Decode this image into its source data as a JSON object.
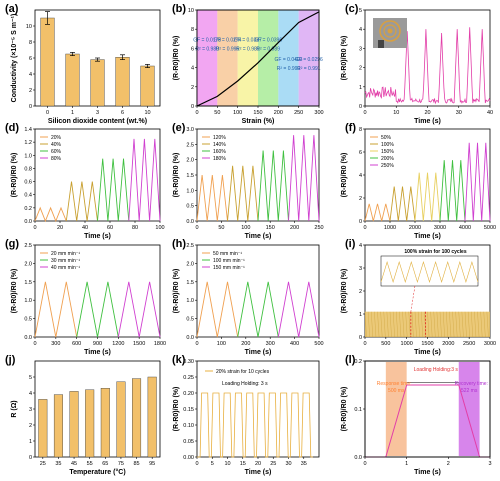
{
  "chart_data": [
    {
      "id": "a",
      "type": "bar",
      "panel_label": "(a)",
      "xlabel": "Silicon dioxide content (wt.%)",
      "ylabel": "Conductivity (×10⁻⁵ S m⁻¹)",
      "categories": [
        "0",
        "1",
        "3",
        "6",
        "10"
      ],
      "values": [
        11.0,
        6.5,
        5.8,
        6.1,
        5.0
      ],
      "errors": [
        0.8,
        0.2,
        0.2,
        0.3,
        0.2
      ],
      "ylim": [
        0,
        12
      ],
      "yticks": [
        "0",
        "2",
        "4",
        "6",
        "8",
        "10"
      ],
      "bar_color": "#f2c06a"
    },
    {
      "id": "b",
      "type": "line",
      "panel_label": "(b)",
      "xlabel": "Strain (%)",
      "ylabel": "(R-R0)/R0 (%)",
      "xlim": [
        0,
        300
      ],
      "ylim": [
        0,
        10
      ],
      "xticks": [
        "0",
        "50",
        "100",
        "150",
        "200",
        "250",
        "300"
      ],
      "yticks": [
        "0",
        "2",
        "4",
        "6",
        "8",
        "10"
      ],
      "x": [
        0,
        50,
        100,
        150,
        200,
        250,
        300
      ],
      "y": [
        0,
        1.0,
        2.6,
        4.5,
        6.6,
        8.7,
        9.8
      ],
      "regions": [
        {
          "gf": "GF = 0.0178",
          "r2": "R² = 0.989",
          "color": "#ee88ee"
        },
        {
          "gf": "GF = 0.0274",
          "r2": "R² = 0.996",
          "color": "#f7c089"
        },
        {
          "gf": "GF = 0.0337",
          "r2": "R² = 0.989",
          "color": "#f5f08a"
        },
        {
          "gf": "GF = 0.0396",
          "r2": "R² = 0.989",
          "color": "#9ee889"
        },
        {
          "gf": "GF = 0.0403",
          "r2": "R² = 0.990",
          "color": "#8ed0f2"
        },
        {
          "gf": "GF = 0.0296",
          "r2": "R² = 0.991",
          "color": "#d69ef2"
        }
      ]
    },
    {
      "id": "c",
      "type": "line",
      "panel_label": "(c)",
      "xlabel": "Time (s)",
      "ylabel": "(R-R0)/R0 (%)",
      "xlim": [
        0,
        40
      ],
      "ylim": [
        0,
        5
      ],
      "xticks": [
        "0",
        "10",
        "20",
        "30",
        "40"
      ],
      "yticks": [
        "0",
        "1",
        "2",
        "3",
        "4",
        "5"
      ],
      "color": "#e23ea8",
      "peaks": [
        3.9,
        4.0,
        3.8,
        4.0,
        4.1,
        4.0
      ]
    },
    {
      "id": "d",
      "type": "line",
      "panel_label": "(d)",
      "xlabel": "Time (s)",
      "ylabel": "(R-R0)/R0 (%)",
      "xlim": [
        0,
        100
      ],
      "ylim": [
        0,
        1.4
      ],
      "xticks": [
        "0",
        "20",
        "40",
        "60",
        "80",
        "100"
      ],
      "yticks": [
        "0.0",
        "0.2",
        "0.4",
        "0.6",
        "0.8",
        "1.0",
        "1.2",
        "1.4"
      ],
      "series": [
        {
          "name": "20%",
          "color": "#f0a050",
          "amp": 0.2
        },
        {
          "name": "40%",
          "color": "#c8a030",
          "amp": 0.6
        },
        {
          "name": "60%",
          "color": "#40c040",
          "amp": 0.95
        },
        {
          "name": "80%",
          "color": "#d040d0",
          "amp": 1.25
        }
      ]
    },
    {
      "id": "e",
      "type": "line",
      "panel_label": "(e)",
      "xlabel": "Time (s)",
      "ylabel": "(R-R0)/R0 (%)",
      "xlim": [
        0,
        250
      ],
      "ylim": [
        0,
        3.0
      ],
      "xticks": [
        "0",
        "50",
        "100",
        "150",
        "200",
        "250"
      ],
      "yticks": [
        "0.0",
        "0.5",
        "1.0",
        "1.5",
        "2.0",
        "2.5",
        "3.0"
      ],
      "series": [
        {
          "name": "120%",
          "color": "#f0a050",
          "amp": 1.5
        },
        {
          "name": "140%",
          "color": "#c8a030",
          "amp": 1.8
        },
        {
          "name": "160%",
          "color": "#40c040",
          "amp": 2.3
        },
        {
          "name": "180%",
          "color": "#d040d0",
          "amp": 2.8
        }
      ]
    },
    {
      "id": "f",
      "type": "line",
      "panel_label": "(f)",
      "xlabel": "Time (s)",
      "ylabel": "(R-R0)/R0 (%)",
      "xlim": [
        0,
        5000
      ],
      "ylim": [
        0,
        8
      ],
      "xticks": [
        "0",
        "1000",
        "2000",
        "3000",
        "4000",
        "5000"
      ],
      "yticks": [
        "0",
        "2",
        "4",
        "6",
        "8"
      ],
      "series": [
        {
          "name": "50%",
          "color": "#f0a050",
          "amp": 1.5
        },
        {
          "name": "100%",
          "color": "#c8a030",
          "amp": 3.0
        },
        {
          "name": "150%",
          "color": "#e8d060",
          "amp": 4.2
        },
        {
          "name": "200%",
          "color": "#40c040",
          "amp": 5.3
        },
        {
          "name": "250%",
          "color": "#d040d0",
          "amp": 6.8
        }
      ]
    },
    {
      "id": "g",
      "type": "line",
      "panel_label": "(g)",
      "xlabel": "Time (s)",
      "ylabel": "(R-R0)/R0 (%)",
      "xlim": [
        0,
        1800
      ],
      "ylim": [
        0,
        2.5
      ],
      "xticks": [
        "0",
        "300",
        "600",
        "900",
        "1200",
        "1500",
        "1800"
      ],
      "yticks": [
        "0.0",
        "0.5",
        "1.0",
        "1.5",
        "2.0",
        "2.5"
      ],
      "series": [
        {
          "name": "20 mm min⁻¹",
          "color": "#f0a050",
          "amp": 1.5
        },
        {
          "name": "30 mm min⁻¹",
          "color": "#40c040",
          "amp": 1.5
        },
        {
          "name": "40 mm min⁻¹",
          "color": "#d040d0",
          "amp": 1.5
        }
      ]
    },
    {
      "id": "h",
      "type": "line",
      "panel_label": "(h)",
      "xlabel": "Time (s)",
      "ylabel": "(R-R0)/R0 (%)",
      "xlim": [
        0,
        500
      ],
      "ylim": [
        0,
        2.5
      ],
      "xticks": [
        "0",
        "100",
        "200",
        "300",
        "400",
        "500"
      ],
      "yticks": [
        "0.0",
        "0.5",
        "1.0",
        "1.5",
        "2.0",
        "2.5"
      ],
      "series": [
        {
          "name": "50 mm min⁻¹",
          "color": "#f0a050",
          "amp": 1.5
        },
        {
          "name": "100 mm min⁻¹",
          "color": "#40c040",
          "amp": 1.5
        },
        {
          "name": "150 mm min⁻¹",
          "color": "#d040d0",
          "amp": 1.5
        }
      ]
    },
    {
      "id": "i",
      "type": "line",
      "panel_label": "(i)",
      "xlabel": "Time (s)",
      "ylabel": "(R-R0)/R0 (%)",
      "xlim": [
        0,
        3000
      ],
      "ylim": [
        0,
        4
      ],
      "xticks": [
        "0",
        "500",
        "1000",
        "1500",
        "2000",
        "2500",
        "3000"
      ],
      "yticks": [
        "0",
        "1",
        "2",
        "3",
        "4"
      ],
      "annotation": "100% strain for 100 cycles",
      "color": "#e8c060"
    },
    {
      "id": "j",
      "type": "bar",
      "panel_label": "(j)",
      "xlabel": "Temperature (°C)",
      "ylabel": "R (Ω)",
      "categories": [
        "25",
        "35",
        "45",
        "55",
        "65",
        "75",
        "85",
        "95"
      ],
      "values": [
        3.6,
        3.9,
        4.1,
        4.2,
        4.3,
        4.7,
        4.9,
        5.0
      ],
      "ylim": [
        0,
        6
      ],
      "yticks": [
        "0",
        "1",
        "2",
        "3",
        "4",
        "5"
      ],
      "bar_color": "#f2c06a"
    },
    {
      "id": "k",
      "type": "line",
      "panel_label": "(k)",
      "xlabel": "Time (s)",
      "ylabel": "(R-R0)/R0 (%)",
      "xlim": [
        0,
        40
      ],
      "ylim": [
        0,
        0.3
      ],
      "xticks": [
        "0",
        "5",
        "10",
        "15",
        "20",
        "25",
        "30",
        "35"
      ],
      "yticks": [
        "0.00",
        "0.05",
        "0.10",
        "0.15",
        "0.20",
        "0.25",
        "0.30"
      ],
      "legend": "20% strain for 10 cycles",
      "annotation": "Loading Holding: 3 s",
      "color": "#e8b040",
      "amp": 0.2
    },
    {
      "id": "l",
      "type": "line",
      "panel_label": "(l)",
      "xlabel": "Time (s)",
      "ylabel": "(R-R0)/R0 (%)",
      "xlim": [
        0,
        3
      ],
      "ylim": [
        0,
        0.2
      ],
      "xticks": [
        "0",
        "1",
        "2",
        "3"
      ],
      "yticks": [
        "0.0",
        "0.1",
        "0.2"
      ],
      "x": [
        0,
        0.5,
        1.0,
        2.25,
        2.75,
        3.0
      ],
      "y": [
        0.0,
        0.0,
        0.15,
        0.15,
        0.0,
        0.0
      ],
      "color": "#e23ea8",
      "annotations": {
        "holding": "Loading Holding:3 s",
        "response": "Response time:",
        "response_value": "500 ms",
        "recovery": "Recovery time:",
        "recovery_value": "522 ms"
      }
    }
  ]
}
